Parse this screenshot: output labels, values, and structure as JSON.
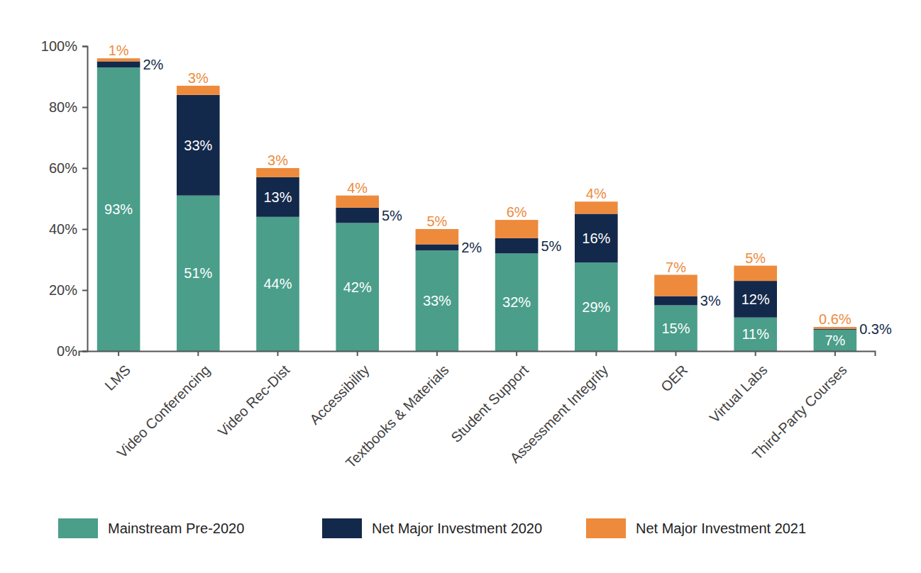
{
  "chart_data": {
    "type": "bar",
    "stacked": true,
    "data_labels": true,
    "grid": false,
    "legend": "bottom",
    "categories": [
      "LMS",
      "Video Conferencing",
      "Video Rec-Dist",
      "Accessibility",
      "Textbooks & Materials",
      "Student Support",
      "Assessment Integrity",
      "OER",
      "Virtual Labs",
      "Third-Party Courses"
    ],
    "series": [
      {
        "name": "Mainstream Pre-2020",
        "color": "#4a9e8a",
        "values": [
          93,
          51,
          44,
          42,
          33,
          32,
          29,
          15,
          11,
          7
        ],
        "value_labels": [
          "93%",
          "51%",
          "44%",
          "42%",
          "33%",
          "32%",
          "29%",
          "15%",
          "11%",
          "7%"
        ]
      },
      {
        "name": "Net Major Investment 2020",
        "color": "#13294b",
        "values": [
          2,
          33,
          13,
          5,
          2,
          5,
          16,
          3,
          12,
          0.3
        ],
        "value_labels": [
          "2%",
          "33%",
          "13%",
          "5%",
          "2%",
          "5%",
          "16%",
          "3%",
          "12%",
          "0.3%"
        ]
      },
      {
        "name": "Net Major Investment 2021",
        "color": "#ee8a3c",
        "values": [
          1,
          3,
          3,
          4,
          5,
          6,
          4,
          7,
          5,
          0.6
        ],
        "value_labels": [
          "1%",
          "3%",
          "3%",
          "4%",
          "5%",
          "6%",
          "4%",
          "7%",
          "5%",
          "0.6%"
        ]
      }
    ],
    "ylim": [
      0,
      100
    ],
    "yticks": [
      {
        "value": 0,
        "label": "0%"
      },
      {
        "value": 20,
        "label": "20%"
      },
      {
        "value": 40,
        "label": "40%"
      },
      {
        "value": 60,
        "label": "60%"
      },
      {
        "value": 80,
        "label": "80%"
      },
      {
        "value": 100,
        "label": "100%"
      }
    ]
  }
}
